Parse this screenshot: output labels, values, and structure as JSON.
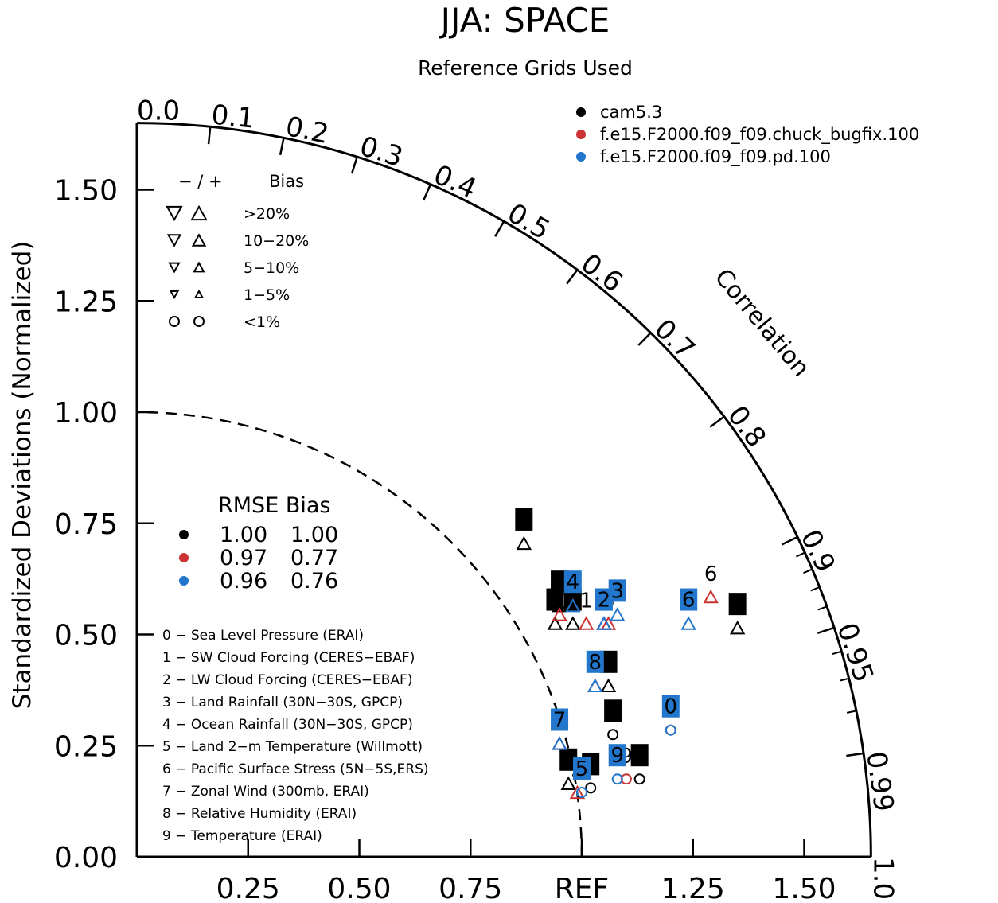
{
  "chart_data": {
    "type": "scatter",
    "title": "JJA: SPACE",
    "subtitle": "Reference Grids Used",
    "ylabel": "Standardized Deviations (Normalized)",
    "corr_label": "Correlation",
    "ref_label": "REF",
    "xlim": [
      0,
      1.65
    ],
    "ylim": [
      0,
      1.65
    ],
    "y_ticks": [
      "0.00",
      "0.25",
      "0.50",
      "0.75",
      "1.00",
      "1.25",
      "1.50"
    ],
    "x_ticks": [
      "0.25",
      "0.50",
      "0.75",
      "1.25",
      "1.50"
    ],
    "corr_ticks": [
      "0.0",
      "0.1",
      "0.2",
      "0.3",
      "0.4",
      "0.5",
      "0.6",
      "0.7",
      "0.8",
      "0.9",
      "0.95",
      "0.99",
      "1.0"
    ],
    "colors": {
      "cam5.3": "#000000",
      "chuck_bugfix": "#cc3333",
      "pd": "#2277cc"
    },
    "legend_cases": [
      {
        "name": "cam5.3",
        "color": "#000000"
      },
      {
        "name": "f.e15.F2000.f09_f09.chuck_bugfix.100",
        "color": "#cc3333"
      },
      {
        "name": "f.e15.F2000.f09_f09.pd.100",
        "color": "#2277cc"
      }
    ],
    "bias_legend": {
      "header": "− / +",
      "bias_label": "Bias",
      "rows": [
        "&gt;20%",
        "10−20%",
        "5−10%",
        "1−5%",
        "&lt;1%"
      ]
    },
    "rmse_table": {
      "header": "RMSE Bias",
      "rows": [
        {
          "color": "#000000",
          "rmse": "1.00",
          "bias": "1.00"
        },
        {
          "color": "#cc3333",
          "rmse": "0.97",
          "bias": "0.77"
        },
        {
          "color": "#2277cc",
          "rmse": "0.96",
          "bias": "0.76"
        }
      ]
    },
    "variables": [
      "0 − Sea Level Pressure (ERAI)",
      "1 − SW Cloud Forcing (CERES−EBAF)",
      "2 − LW Cloud Forcing (CERES−EBAF)",
      "3 − Land Rainfall (30N−30S, GPCP)",
      "4 − Ocean Rainfall (30N−30S, GPCP)",
      "5 − Land 2−m Temperature (Willmott)",
      "6 − Pacific Surface Stress (5N−5S,ERS)",
      "7 − Zonal Wind (300mb, ERAI)",
      "8 − Relative Humidity (ERAI)",
      "9 − Temperature (ERAI)"
    ],
    "series": [
      {
        "name": "cam5.3",
        "color": "#000000",
        "label_style": "box",
        "points": [
          {
            "id": "0",
            "x": 1.07,
            "y": 0.3,
            "marker": "circle"
          },
          {
            "id": "1",
            "x": 0.98,
            "y": 0.55,
            "marker": "tri-up"
          },
          {
            "id": "2",
            "x": 0.94,
            "y": 0.55,
            "marker": "tri-up"
          },
          {
            "id": "3",
            "x": 0.87,
            "y": 0.73,
            "marker": "tri-up"
          },
          {
            "id": "4",
            "x": 0.95,
            "y": 0.59,
            "marker": "tri-up"
          },
          {
            "id": "5",
            "x": 1.02,
            "y": 0.18,
            "marker": "circle"
          },
          {
            "id": "6",
            "x": 1.35,
            "y": 0.54,
            "marker": "tri-up"
          },
          {
            "id": "7",
            "x": 0.97,
            "y": 0.19,
            "marker": "tri-up"
          },
          {
            "id": "8",
            "x": 1.06,
            "y": 0.41,
            "marker": "tri-up"
          },
          {
            "id": "9",
            "x": 1.13,
            "y": 0.2,
            "marker": "circle"
          }
        ]
      },
      {
        "name": "chuck_bugfix",
        "color": "#cc3333",
        "label_style": "text",
        "points": [
          {
            "id": "0",
            "x": 1.2,
            "y": 0.31,
            "marker": "circle"
          },
          {
            "id": "1",
            "x": 1.01,
            "y": 0.55,
            "marker": "tri-up"
          },
          {
            "id": "2",
            "x": 1.05,
            "y": 0.55,
            "marker": "tri-up"
          },
          {
            "id": "3",
            "x": 1.06,
            "y": 0.55,
            "marker": "tri-up"
          },
          {
            "id": "4",
            "x": 0.95,
            "y": 0.57,
            "marker": "tri-up"
          },
          {
            "id": "5",
            "x": 0.99,
            "y": 0.17,
            "marker": "tri-up"
          },
          {
            "id": "6",
            "x": 1.29,
            "y": 0.61,
            "marker": "tri-up"
          },
          {
            "id": "7",
            "x": 0.95,
            "y": 0.28,
            "marker": "tri-up"
          },
          {
            "id": "8",
            "x": 1.03,
            "y": 0.41,
            "marker": "tri-up"
          },
          {
            "id": "9",
            "x": 1.1,
            "y": 0.2,
            "marker": "circle"
          }
        ]
      },
      {
        "name": "pd",
        "color": "#2277cc",
        "label_style": "box",
        "points": [
          {
            "id": "0",
            "x": 1.2,
            "y": 0.31,
            "marker": "circle"
          },
          {
            "id": "1",
            "x": 1.05,
            "y": 0.55,
            "marker": "tri-up"
          },
          {
            "id": "2",
            "x": 1.05,
            "y": 0.55,
            "marker": "tri-up"
          },
          {
            "id": "3",
            "x": 1.08,
            "y": 0.57,
            "marker": "tri-up"
          },
          {
            "id": "4",
            "x": 0.98,
            "y": 0.59,
            "marker": "tri-up"
          },
          {
            "id": "5",
            "x": 1.0,
            "y": 0.17,
            "marker": "circle"
          },
          {
            "id": "6",
            "x": 1.24,
            "y": 0.55,
            "marker": "tri-up"
          },
          {
            "id": "7",
            "x": 0.95,
            "y": 0.28,
            "marker": "tri-up"
          },
          {
            "id": "8",
            "x": 1.03,
            "y": 0.41,
            "marker": "tri-up"
          },
          {
            "id": "9",
            "x": 1.08,
            "y": 0.2,
            "marker": "circle"
          }
        ]
      }
    ]
  }
}
